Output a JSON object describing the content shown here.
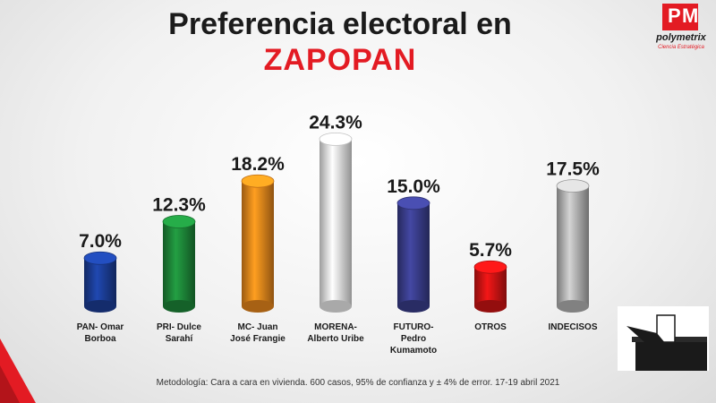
{
  "title": "Preferencia electoral en",
  "subtitle": "ZAPOPAN",
  "logo": {
    "name": "polymetrix",
    "tagline": "Ciencia Estratégica"
  },
  "footer": "Metodología: Cara a cara en vivienda. 600 casos, 95% de confianza y ± 4% de error. 17-19 abril 2021",
  "chart_data": {
    "type": "bar",
    "categories": [
      [
        "PAN- Omar",
        "Borboa"
      ],
      [
        "PRI- Dulce",
        "Sarahí"
      ],
      [
        "MC- Juan",
        "José Frangie"
      ],
      [
        "MORENA-",
        "Alberto Uribe"
      ],
      [
        "FUTURO-",
        "Pedro",
        "Kumamoto"
      ],
      [
        "OTROS"
      ],
      [
        "INDECISOS"
      ]
    ],
    "values": [
      7.0,
      12.3,
      18.2,
      24.3,
      15.0,
      5.7,
      17.5
    ],
    "value_labels": [
      "7.0%",
      "12.3%",
      "18.2%",
      "24.3%",
      "15.0%",
      "5.7%",
      "17.5%"
    ],
    "colors": [
      "#1c3f9a",
      "#1e8a3a",
      "#ef8a1c",
      "#f2f2f2",
      "#3b3f8f",
      "#d41414",
      "#b8b8b8"
    ],
    "ylim": [
      0,
      25
    ],
    "grid": false,
    "legend": "none"
  }
}
